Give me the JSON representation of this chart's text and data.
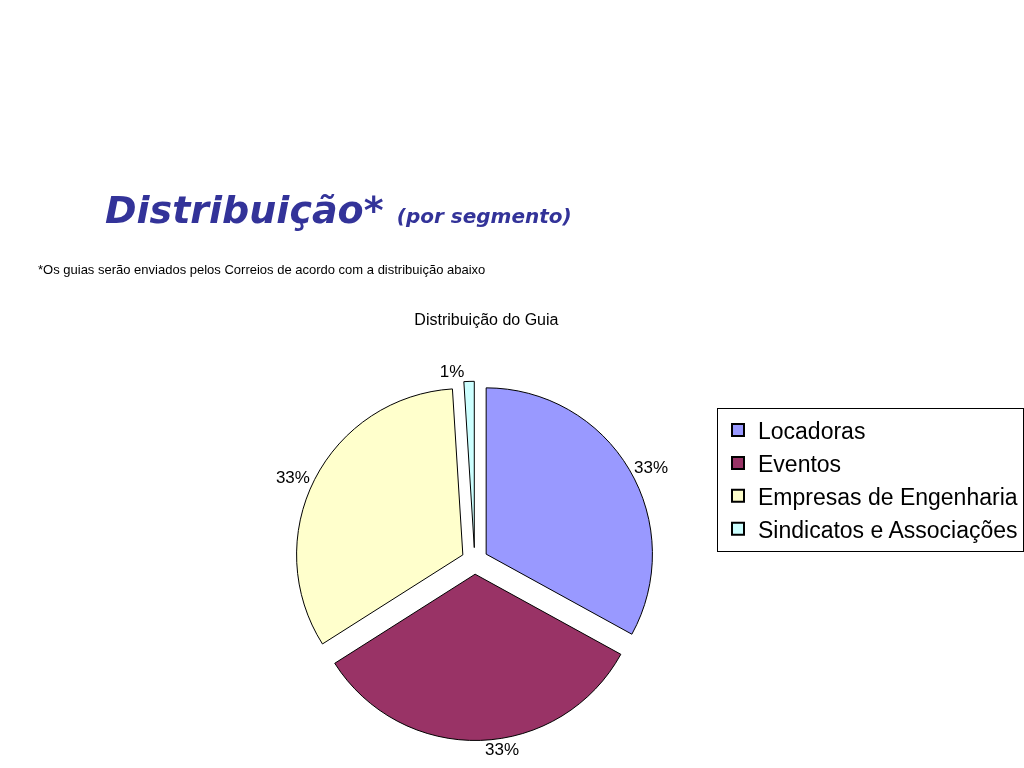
{
  "chart_data": {
    "type": "pie",
    "title": "Distribuição do Guia",
    "subtitle": "Distribuição* (por segmento)",
    "annotations": [
      "*Os guias serão enviados pelos Correios de acordo com a distribuição abaixo"
    ],
    "categories": [
      "Locadoras",
      "Eventos",
      "Empresas de Engenharia",
      "Sindicatos e Associações"
    ],
    "values": [
      33,
      33,
      33,
      1
    ],
    "value_labels": [
      "33%",
      "33%",
      "33%",
      "1%"
    ],
    "colors": [
      "#9999ff",
      "#993366",
      "#ffffcc",
      "#ccffff"
    ],
    "legend": "right"
  }
}
